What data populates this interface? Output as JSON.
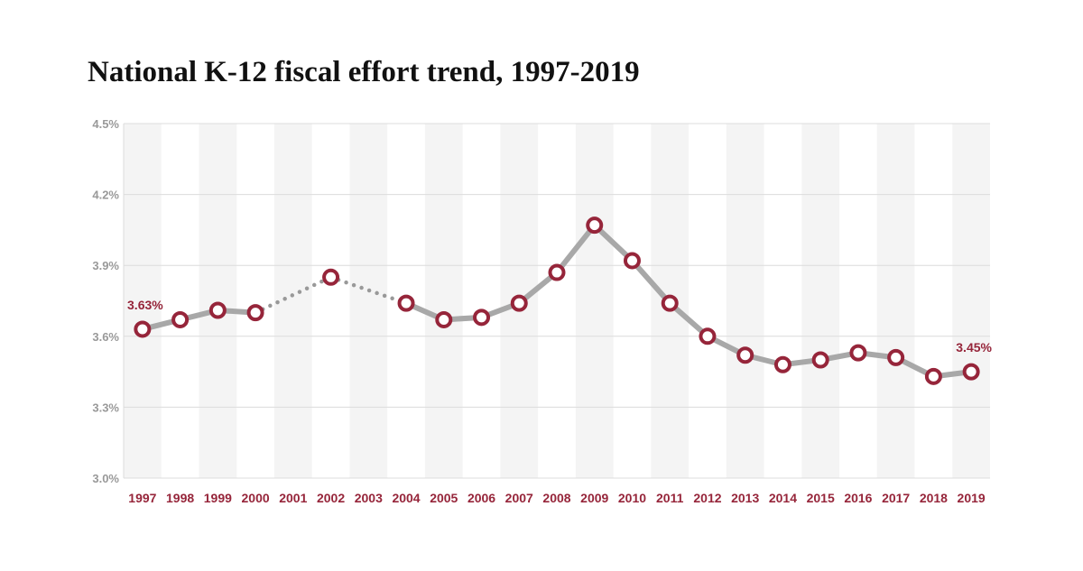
{
  "chart_data": {
    "type": "line",
    "title": "National K-12 fiscal effort trend, 1997-2019",
    "xlabel": "",
    "ylabel": "",
    "x": [
      "1997",
      "1998",
      "1999",
      "2000",
      "2001",
      "2002",
      "2003",
      "2004",
      "2005",
      "2006",
      "2007",
      "2008",
      "2009",
      "2010",
      "2011",
      "2012",
      "2013",
      "2014",
      "2015",
      "2016",
      "2017",
      "2018",
      "2019"
    ],
    "series": [
      {
        "values": [
          3.63,
          3.67,
          3.71,
          3.7,
          null,
          3.85,
          null,
          3.74,
          3.67,
          3.68,
          3.74,
          3.87,
          4.07,
          3.92,
          3.74,
          3.6,
          3.52,
          3.48,
          3.5,
          3.53,
          3.51,
          3.43,
          3.45
        ]
      }
    ],
    "dotted_segments": [
      [
        "2000",
        "2004"
      ]
    ],
    "ylim": [
      3.0,
      4.5
    ],
    "yticks": [
      "3.0%",
      "3.3%",
      "3.6%",
      "3.9%",
      "4.2%",
      "4.5%"
    ],
    "ytick_values": [
      3.0,
      3.3,
      3.6,
      3.9,
      4.2,
      4.5
    ],
    "data_labels": [
      {
        "x": "1997",
        "text": "3.63%"
      },
      {
        "x": "2019",
        "text": "3.45%"
      }
    ],
    "grid": true,
    "colors": {
      "line": "#a8a8a8",
      "marker_stroke": "#96253a",
      "marker_fill": "#ffffff",
      "x_tick_text": "#96253a",
      "data_label_text": "#96253a",
      "y_tick_text": "#999999",
      "band": "#f4f4f4",
      "gridline": "#dcdcdc"
    }
  }
}
